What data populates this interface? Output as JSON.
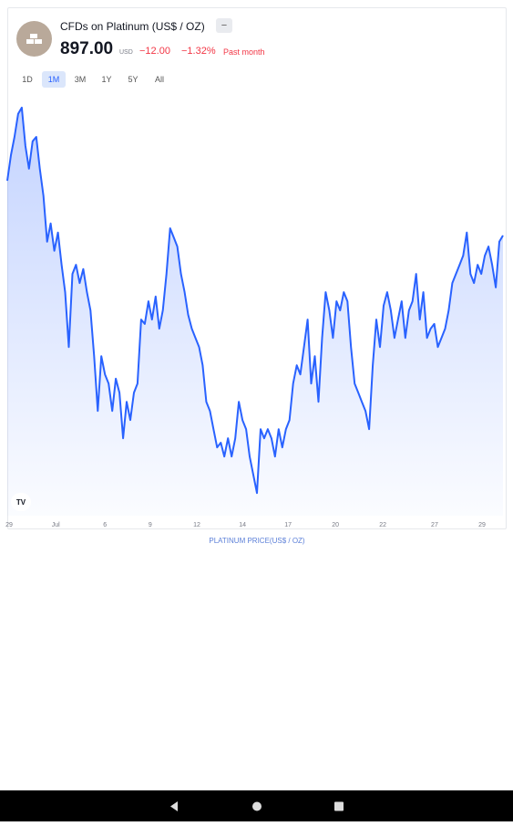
{
  "header": {
    "name": "CFDs on Platinum (US$ / OZ)",
    "badge": "−",
    "price": "897.00",
    "currency": "USD",
    "change": "−12.00",
    "change_percent": "−1.32%",
    "period": "Past month",
    "ranges": [
      "1D",
      "1M",
      "3M",
      "1Y",
      "5Y",
      "All"
    ],
    "selected_range": "1M",
    "logo": "TV"
  },
  "chart_data": {
    "type": "line",
    "x_label": "PLATINUM PRICE(US$ / OZ)",
    "color": "#2962ff",
    "fill": true,
    "values": [
      908.4,
      913.7,
      917.5,
      922.3,
      923.6,
      915.6,
      910.9,
      916.6,
      917.5,
      910.9,
      905.2,
      895.7,
      899.5,
      893.8,
      897.6,
      890.9,
      885.2,
      873.8,
      889.0,
      890.9,
      887.1,
      890.0,
      885.2,
      881.4,
      871.9,
      860.5,
      871.9,
      868.1,
      866.2,
      860.5,
      867.2,
      864.3,
      854.8,
      862.4,
      858.6,
      864.3,
      866.2,
      879.5,
      878.6,
      883.3,
      879.5,
      884.3,
      877.6,
      881.4,
      889.0,
      898.5,
      896.6,
      894.7,
      889.0,
      885.2,
      880.5,
      877.6,
      875.7,
      873.8,
      870.0,
      862.4,
      860.5,
      856.7,
      852.9,
      853.9,
      851.0,
      854.8,
      851.0,
      854.8,
      862.4,
      858.6,
      856.7,
      851.0,
      847.2,
      843.4,
      856.7,
      854.8,
      856.7,
      854.8,
      851.0,
      856.7,
      852.9,
      856.7,
      858.6,
      866.2,
      870.0,
      868.1,
      873.8,
      879.5,
      866.2,
      871.9,
      862.4,
      875.7,
      885.2,
      881.4,
      875.7,
      883.3,
      881.4,
      885.2,
      883.3,
      873.8,
      866.2,
      864.3,
      862.4,
      860.5,
      856.7,
      870.0,
      879.5,
      873.8,
      882.4,
      885.2,
      881.4,
      875.7,
      879.5,
      883.3,
      875.7,
      881.4,
      883.3,
      889.0,
      879.5,
      885.2,
      875.7,
      877.6,
      878.6,
      873.8,
      875.7,
      877.6,
      881.4,
      887.1,
      889.0,
      890.9,
      892.8,
      897.6,
      889.0,
      887.1,
      890.9,
      889.0,
      892.8,
      894.7,
      890.9,
      886.2,
      895.7,
      897.0
    ],
    "xlim": [
      0,
      137
    ],
    "ylim": [
      838.7,
      927.0
    ],
    "xticks": [
      {
        "value": 0.5,
        "label": "29"
      },
      {
        "value": 13.4,
        "label": "Jul"
      },
      {
        "value": 27,
        "label": "6"
      },
      {
        "value": 39.5,
        "label": "9"
      },
      {
        "value": 52.4,
        "label": "12"
      },
      {
        "value": 65,
        "label": "14"
      },
      {
        "value": 77.6,
        "label": "17"
      },
      {
        "value": 90.7,
        "label": "20"
      },
      {
        "value": 103.8,
        "label": "22"
      },
      {
        "value": 118.1,
        "label": "27"
      },
      {
        "value": 131.2,
        "label": "29"
      }
    ],
    "grid": false
  }
}
